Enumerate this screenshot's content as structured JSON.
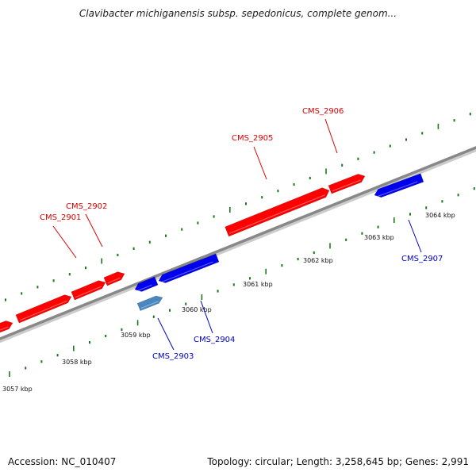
{
  "title": "Clavibacter michiganensis subsp. sepedonicus, complete genom...",
  "footer": {
    "accession": "Accession: NC_010407",
    "summary": "Topology: circular; Length: 3,258,645 bp; Genes: 2,991"
  },
  "colors": {
    "forward_gene": "#ff0000",
    "reverse_gene": "#0000ee",
    "other_feature": "#4a86c0",
    "backbone": "#888888",
    "tick": "#1a7a1a",
    "forward_label": "#dd0000",
    "reverse_label": "#0000cc"
  },
  "scale": {
    "kbp_labels": [
      "3057 kbp",
      "3058 kbp",
      "3059 kbp",
      "3060 kbp",
      "3061 kbp",
      "3062 kbp",
      "3063 kbp",
      "3064 kbp"
    ]
  },
  "genes": [
    {
      "name": "CMS_2901",
      "strand": "+"
    },
    {
      "name": "CMS_2902",
      "strand": "+"
    },
    {
      "name": "CMS_2903",
      "strand": "-"
    },
    {
      "name": "CMS_2904",
      "strand": "-"
    },
    {
      "name": "CMS_2905",
      "strand": "+"
    },
    {
      "name": "CMS_2906",
      "strand": "+"
    },
    {
      "name": "CMS_2907",
      "strand": "-"
    }
  ]
}
